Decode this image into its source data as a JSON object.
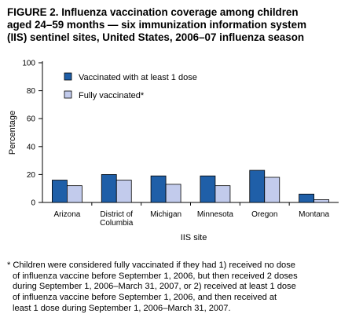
{
  "title_lines": [
    "FIGURE 2. Influenza vaccination coverage among children",
    "aged 24–59 months — six immunization information system",
    "(IIS) sentinel sites, United States, 2006–07 influenza season"
  ],
  "footnote_lines": [
    "* Children were considered fully vaccinated if they had 1) received no dose",
    "of influenza vaccine before September 1, 2006, but then received 2 doses",
    "during September 1, 2006–March 31, 2007, or 2) received at least 1 dose",
    "of influenza vaccine before September 1, 2006, and then received at",
    "least 1 dose during September 1, 2006–March 31, 2007."
  ],
  "colors": {
    "series1": "#1f5fa8",
    "series2": "#c2cbec",
    "stroke": "#000000"
  },
  "chart_data": {
    "type": "bar",
    "categories": [
      [
        "Arizona"
      ],
      [
        "District of",
        "Columbia"
      ],
      [
        "Michigan"
      ],
      [
        "Minnesota"
      ],
      [
        "Oregon"
      ],
      [
        "Montana"
      ]
    ],
    "series": [
      {
        "name": "Vaccinated with at least 1 dose",
        "values": [
          16,
          20,
          19,
          19,
          23,
          6
        ]
      },
      {
        "name": "Fully vaccinated*",
        "values": [
          12,
          16,
          13,
          12,
          18,
          2
        ]
      }
    ],
    "xlabel": "IIS site",
    "ylabel": "Percentage",
    "ylim": [
      0,
      100
    ],
    "yticks": [
      0,
      20,
      40,
      60,
      80,
      100
    ],
    "grid": false,
    "legend_position": "top-left"
  }
}
